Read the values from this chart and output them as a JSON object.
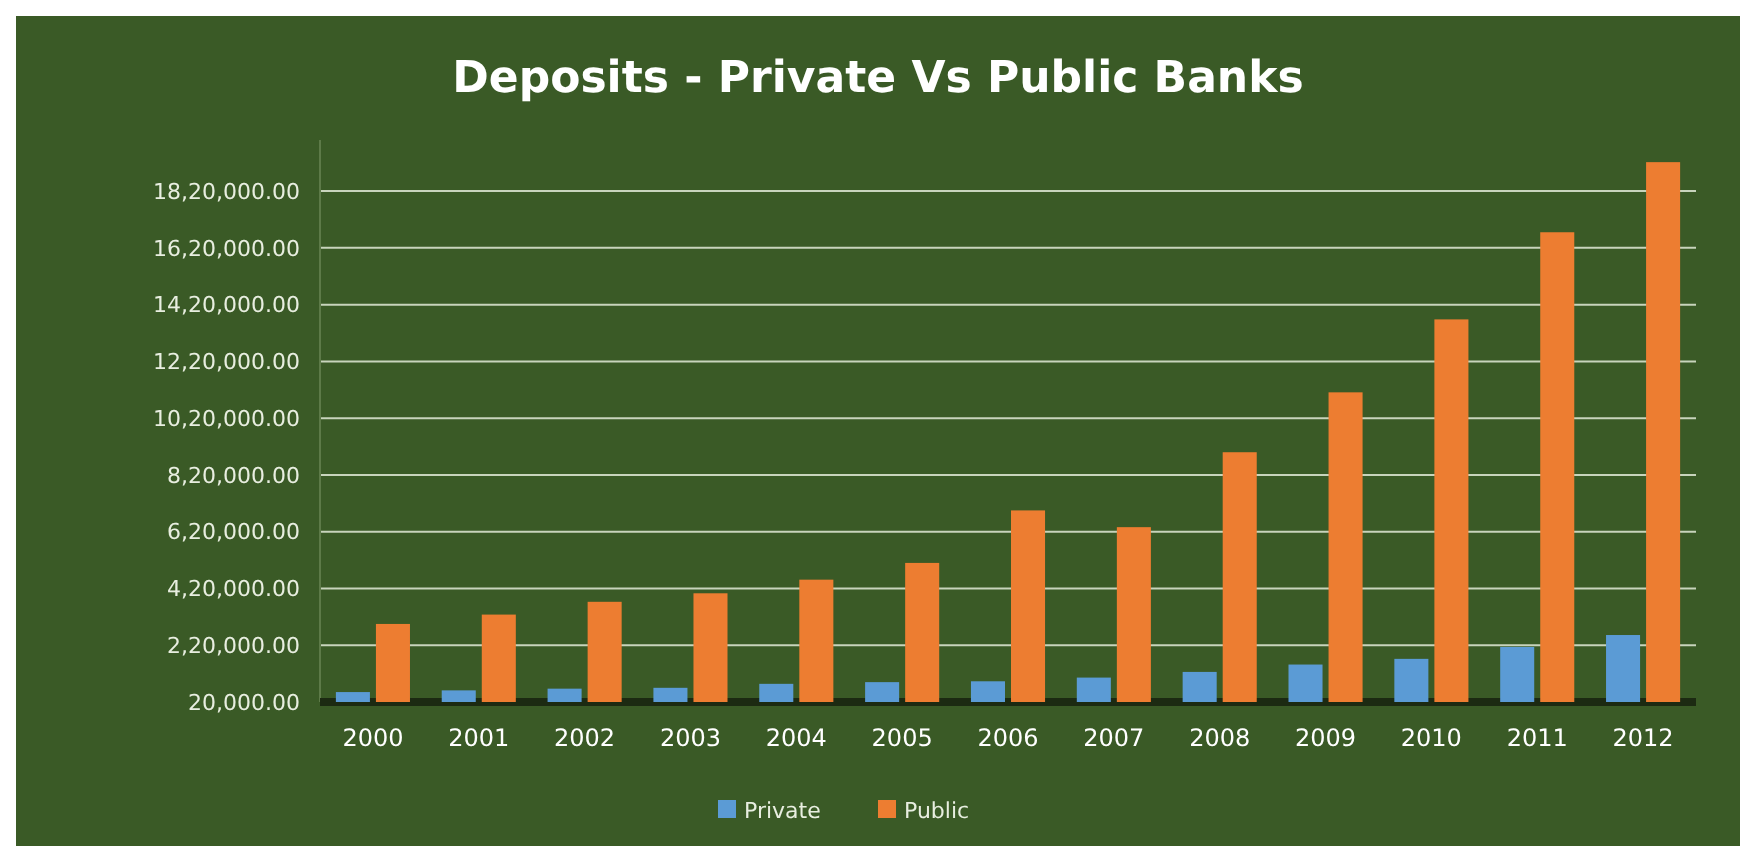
{
  "chart_data": {
    "type": "bar",
    "title": "Deposits - Private Vs Public Banks",
    "categories": [
      "2000",
      "2001",
      "2002",
      "2003",
      "2004",
      "2005",
      "2006",
      "2007",
      "2008",
      "2009",
      "2010",
      "2011",
      "2012"
    ],
    "series": [
      {
        "name": "Private",
        "color": "#5b9bd5",
        "values": [
          55000,
          61000,
          67000,
          70000,
          84000,
          90000,
          93000,
          106000,
          126000,
          152000,
          172000,
          214000,
          256000
        ]
      },
      {
        "name": "Public",
        "color": "#ed7d31",
        "values": [
          295000,
          328000,
          373000,
          403000,
          451000,
          510000,
          695000,
          636000,
          900000,
          1111000,
          1368000,
          1675000,
          1922000
        ]
      }
    ],
    "ylim": [
      20000,
      2000000
    ],
    "yticks": [
      {
        "value": 20000,
        "label": "20,000.00"
      },
      {
        "value": 220000,
        "label": "2,20,000.00"
      },
      {
        "value": 420000,
        "label": "4,20,000.00"
      },
      {
        "value": 620000,
        "label": "6,20,000.00"
      },
      {
        "value": 820000,
        "label": "8,20,000.00"
      },
      {
        "value": 1020000,
        "label": "10,20,000.00"
      },
      {
        "value": 1220000,
        "label": "12,20,000.00"
      },
      {
        "value": 1420000,
        "label": "14,20,000.00"
      },
      {
        "value": 1620000,
        "label": "16,20,000.00"
      },
      {
        "value": 1820000,
        "label": "18,20,000.00"
      }
    ],
    "grid": "y",
    "legend": "bottom"
  }
}
